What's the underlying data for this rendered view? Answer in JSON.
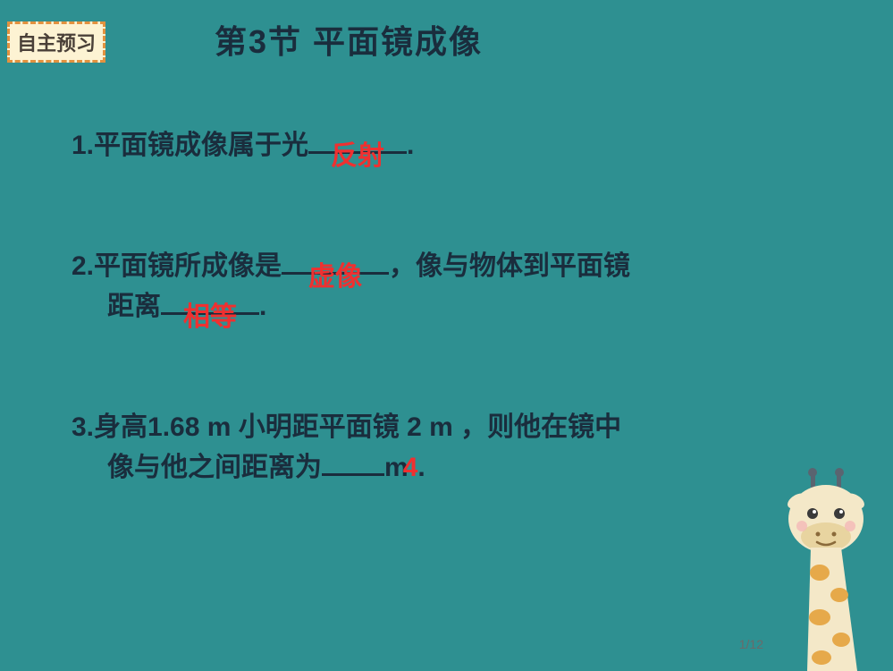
{
  "colors": {
    "background": "#2e9091",
    "badge_bg": "#fdf3d3",
    "badge_border": "#e3923f",
    "badge_text": "#4a4038",
    "title_text": "#1a2d3d",
    "body_text": "#1a2d3d",
    "answer_text": "#f03030",
    "underline": "#1a2d3d",
    "pagenum": "#6a6a6a",
    "giraffe_body": "#f4e8c8",
    "giraffe_spot": "#e6a94a",
    "giraffe_dark": "#5a6470",
    "giraffe_mouth": "#8a6a3a"
  },
  "badge": {
    "text": "自主预习"
  },
  "title": "第3节  平面镜成像",
  "q1": {
    "pre": "1.平面镜成像属于光",
    "blank_width": 110,
    "answer": "反射",
    "post": "."
  },
  "q2": {
    "pre": "2.平面镜所成像是",
    "blank1_width": 120,
    "answer1": "虚像",
    "mid1": "，像与物体到平面镜",
    "line2_pre": "距离",
    "blank2_width": 110,
    "answer2": "相等",
    "post": "."
  },
  "q3": {
    "pre": "3.身高1.68 m 小明距平面镜 2 m ，则他在镜中",
    "line2_pre": "像与他之间距离为",
    "blank_width": 70,
    "unit": "m",
    "answer": "4",
    "post": "."
  },
  "pagenum": "1/12"
}
